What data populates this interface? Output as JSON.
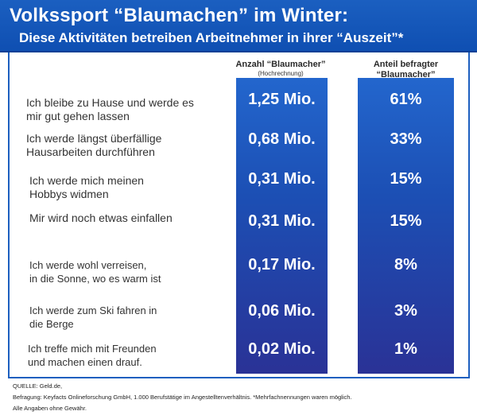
{
  "header": {
    "title": "Volkssport “Blaumachen” im Winter:",
    "subtitle": "Diese Aktivitäten betreiben Arbeitnehmer in ihrer “Auszeit”*"
  },
  "columns": {
    "count_label": "Anzahl “Blaumacher”",
    "count_sublabel": "(Hochrechnung)",
    "share_label_line1": "Anteil befragter",
    "share_label_line2": "“Blaumacher”"
  },
  "chart_data": {
    "type": "table",
    "rows": [
      {
        "activity_line1": "Ich bleibe zu Hause und werde es",
        "activity_line2": "mir gut gehen lassen",
        "count": "1,25 Mio.",
        "share": "61%"
      },
      {
        "activity_line1": "Ich werde längst überfällige",
        "activity_line2": "Hausarbeiten durchführen",
        "count": "0,68 Mio.",
        "share": "33%"
      },
      {
        "activity_line1": "Ich werde mich meinen",
        "activity_line2": "Hobbys widmen",
        "count": "0,31 Mio.",
        "share": "15%"
      },
      {
        "activity_line1": "Mir wird noch etwas einfallen",
        "activity_line2": "",
        "count": "0,31 Mio.",
        "share": "15%"
      },
      {
        "activity_line1": "Ich werde wohl verreisen,",
        "activity_line2": "in die Sonne, wo es warm ist",
        "count": "0,17 Mio.",
        "share": "8%"
      },
      {
        "activity_line1": "Ich werde zum Ski fahren in",
        "activity_line2": "die Berge",
        "count": "0,06 Mio.",
        "share": "3%"
      },
      {
        "activity_line1": "Ich treffe mich mit Freunden",
        "activity_line2": "und machen einen drauf.",
        "count": "0,02 Mio.",
        "share": "1%"
      }
    ]
  },
  "footer": {
    "source": "QUELLE: Geld.de,",
    "survey": "Befragung: Keyfacts Onlineforschung GmbH, 1.000 Berufstätige im Angestelltenverhältnis. *Mehrfachnennungen waren möglich.",
    "disclaimer": "Alle Angaben ohne Gewähr."
  },
  "colors": {
    "header_blue": "#1b5fc0",
    "column_blue_top": "#2366cd",
    "column_blue_bottom": "#2a3296"
  }
}
